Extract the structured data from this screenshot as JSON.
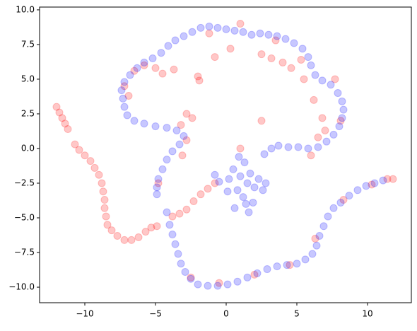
{
  "chart_data": {
    "type": "scatter",
    "xlim": [
      -13.2,
      13.1
    ],
    "ylim": [
      -11.12,
      10.2
    ],
    "xticks": [
      {
        "value": -10,
        "label": "−10"
      },
      {
        "value": -5,
        "label": "−5"
      },
      0,
      5,
      10
    ],
    "yticks": [
      {
        "value": -10,
        "label": "−10.0"
      },
      {
        "value": -7.5,
        "label": "−7.5"
      },
      {
        "value": -5,
        "label": "−5.0"
      },
      {
        "value": -2.5,
        "label": "−2.5"
      },
      {
        "value": 0,
        "label": "0.0"
      },
      2.5,
      {
        "value": 5,
        "label": "5.0"
      },
      7.5,
      {
        "value": 10,
        "label": "10.0"
      }
    ],
    "grid": false,
    "series": [
      {
        "color": "#ff0000",
        "x": [
          -12.0,
          -11.8,
          -11.6,
          -11.4,
          -11.2,
          -10.7,
          -10.4,
          -10.0,
          -9.6,
          -9.3,
          -9.0,
          -8.8,
          -8.7,
          -8.6,
          -8.6,
          -8.5,
          -8.4,
          -8.1,
          -7.7,
          -7.2,
          -6.7,
          -6.2,
          -5.7,
          -5.3,
          -4.9,
          -3.8,
          -3.3,
          -2.8,
          -2.3,
          -1.8,
          -1.3,
          -0.8,
          -6.5,
          -5.8,
          -5.0,
          -4.5,
          -3.7,
          -2.0,
          -1.9,
          -0.8,
          0.3,
          1.0,
          2.5,
          3.2,
          4.0,
          4.6,
          5.3,
          6.2,
          6.8,
          6.5,
          6.0,
          2.5,
          -2.8,
          -2.4,
          -3.2,
          -2.8,
          -3.1,
          -4.8,
          -7.2,
          -6.9,
          -1.2,
          3.5,
          5.5,
          7.7,
          8.1,
          7.0,
          1.0,
          -2.5,
          -0.5,
          2.0,
          4.5,
          6.3,
          8.3,
          11.4,
          11.8,
          10.3
        ],
        "values": [
          3.0,
          2.6,
          2.2,
          1.8,
          1.4,
          0.3,
          -0.1,
          -0.5,
          -0.9,
          -1.4,
          -1.9,
          -2.5,
          -3.1,
          -3.7,
          -4.3,
          -4.9,
          -5.5,
          -5.9,
          -6.3,
          -6.6,
          -6.6,
          -6.4,
          -6.0,
          -5.7,
          -5.6,
          -4.9,
          -4.7,
          -4.4,
          -3.8,
          -3.3,
          -2.9,
          -2.5,
          5.6,
          6.0,
          5.8,
          5.4,
          5.7,
          5.2,
          4.9,
          6.6,
          7.2,
          9.0,
          6.8,
          6.5,
          6.2,
          5.8,
          6.4,
          3.5,
          2.2,
          0.8,
          -0.5,
          2.0,
          2.5,
          2.2,
          1.7,
          0.6,
          -0.5,
          -2.5,
          4.5,
          3.8,
          8.3,
          7.8,
          5.0,
          5.0,
          2.0,
          1.3,
          0.0,
          -9.3,
          -9.7,
          -9.1,
          -8.4,
          -6.5,
          -3.7,
          -2.2,
          -2.2,
          -2.6
        ]
      },
      {
        "color": "#0000ff",
        "x": [
          -4.9,
          -4.9,
          -4.8,
          -4.5,
          -4.2,
          -3.8,
          -3.3,
          -3.0,
          -3.5,
          -4.2,
          -5.0,
          -5.8,
          -6.5,
          -7.0,
          -7.2,
          -7.3,
          -7.4,
          -7.2,
          -6.8,
          -6.3,
          -5.8,
          -5.2,
          -4.6,
          -4.1,
          -3.6,
          -3.0,
          -2.4,
          -1.8,
          -1.2,
          -0.6,
          0,
          0.6,
          1.2,
          1.8,
          2.4,
          3.0,
          3.6,
          4.2,
          4.8,
          5.4,
          5.8,
          6.0,
          6.3,
          6.8,
          7.4,
          7.9,
          8.2,
          8.3,
          8.2,
          8.0,
          7.6,
          7.1,
          6.5,
          5.8,
          5.1,
          4.4,
          3.7,
          3.2,
          2.7,
          0.5,
          1.0,
          1.5,
          0.8,
          1.2,
          2.0,
          0.2,
          -0.5,
          -0.8,
          1.7,
          2.3,
          2.6,
          1.4,
          0.6,
          1.9,
          0.9,
          1.3,
          0.1,
          2.8,
          1.6,
          -4.2,
          -4.0,
          -3.8,
          -3.6,
          -3.4,
          -3.2,
          -2.9,
          -2.5,
          -2.0,
          -1.3,
          -0.6,
          0.1,
          0.8,
          1.5,
          2.2,
          2.9,
          3.6,
          4.3,
          5.0,
          5.6,
          6.1,
          6.4,
          6.6,
          6.9,
          7.2,
          7.6,
          8.1,
          8.7,
          9.3,
          9.9,
          10.5,
          11.1
        ],
        "values": [
          -3.3,
          -2.8,
          -2.2,
          -1.5,
          -0.8,
          -0.2,
          0.3,
          0.9,
          1.3,
          1.5,
          1.6,
          1.8,
          2.0,
          2.4,
          3.0,
          3.6,
          4.2,
          4.8,
          5.3,
          5.8,
          6.2,
          6.5,
          6.9,
          7.4,
          7.8,
          8.1,
          8.4,
          8.7,
          8.8,
          8.7,
          8.6,
          8.5,
          8.4,
          8.2,
          8.3,
          8.2,
          8.1,
          7.9,
          7.6,
          7.2,
          6.6,
          6.0,
          5.3,
          4.9,
          4.6,
          4.0,
          3.4,
          2.8,
          2.2,
          1.6,
          1.0,
          0.5,
          0.1,
          0.0,
          0.1,
          0.1,
          0.2,
          0.0,
          -0.4,
          -1.5,
          -2.0,
          -2.5,
          -3.0,
          -3.5,
          -2.8,
          -2.2,
          -2.4,
          -1.9,
          -1.8,
          -2.2,
          -3.0,
          -4.0,
          -4.3,
          -3.9,
          -0.6,
          -1.0,
          -3.1,
          -2.5,
          -4.6,
          -4.6,
          -5.5,
          -6.2,
          -6.9,
          -7.6,
          -8.3,
          -8.9,
          -9.4,
          -9.8,
          -9.9,
          -9.9,
          -9.8,
          -9.6,
          -9.3,
          -9.0,
          -8.7,
          -8.5,
          -8.4,
          -8.3,
          -8.0,
          -7.6,
          -7.0,
          -6.3,
          -5.6,
          -4.9,
          -4.3,
          -3.9,
          -3.4,
          -3.0,
          -2.7,
          -2.5,
          -2.3
        ]
      }
    ]
  }
}
